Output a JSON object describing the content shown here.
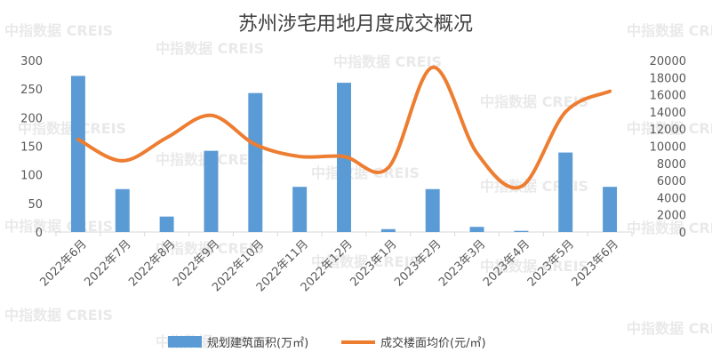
{
  "watermark": "中指数据 CREIS",
  "chart_data": {
    "type": "bar+line",
    "title": "苏州涉宅用地月度成交概况",
    "categories": [
      "2022年6月",
      "2022年7月",
      "2022年8月",
      "2022年9月",
      "2022年10月",
      "2022年11月",
      "2022年12月",
      "2023年1月",
      "2023年2月",
      "2023年3月",
      "2023年4月",
      "2023年5月",
      "2023年6月"
    ],
    "series": [
      {
        "name": "规划建筑面积(万㎡)",
        "type": "bar",
        "axis": "left",
        "values": [
          273,
          75,
          27,
          142,
          243,
          79,
          261,
          5,
          75,
          9,
          2,
          139,
          79
        ]
      },
      {
        "name": "成交楼面均价(元/㎡)",
        "type": "line",
        "axis": "right",
        "values": [
          10800,
          8300,
          11000,
          13600,
          10200,
          8800,
          8800,
          7500,
          19200,
          9200,
          5300,
          14000,
          16400
        ]
      }
    ],
    "ylim_left": [
      0,
      300
    ],
    "yticks_left": [
      0,
      50,
      100,
      150,
      200,
      250,
      300
    ],
    "ylim_right": [
      0,
      20000
    ],
    "yticks_right": [
      0,
      2000,
      4000,
      6000,
      8000,
      10000,
      12000,
      14000,
      16000,
      18000,
      20000
    ],
    "grid": false,
    "legend_position": "bottom",
    "colors": {
      "bar": "#5b9bd5",
      "line": "#ed7d31",
      "axis": "#d9d9d9",
      "text": "#595959"
    }
  }
}
